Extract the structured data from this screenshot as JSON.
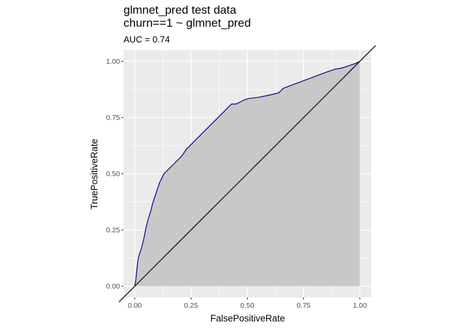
{
  "chart_data": {
    "type": "area",
    "title": "glmnet_pred test data",
    "title_line2": "churn==1 ~ glmnet_pred",
    "subtitle": "AUC = 0.74",
    "xlabel": "FalsePositiveRate",
    "ylabel": "TruePositiveRate",
    "xlim": [
      -0.05,
      1.05
    ],
    "ylim": [
      -0.05,
      1.05
    ],
    "x_ticks": [
      "0.00",
      "0.25",
      "0.50",
      "0.75",
      "1.00"
    ],
    "y_ticks": [
      "0.00",
      "0.25",
      "0.50",
      "0.75",
      "1.00"
    ],
    "grid": true,
    "legend": "none",
    "colors": {
      "panel": "#ebebeb",
      "grid": "#ffffff",
      "area_fill": "#c8c8c8",
      "roc_line": "#00008b",
      "diagonal": "#000000"
    },
    "roc_curve": {
      "x": [
        0,
        0.005,
        0.01,
        0.015,
        0.02,
        0.03,
        0.04,
        0.05,
        0.06,
        0.07,
        0.08,
        0.09,
        0.1,
        0.11,
        0.12,
        0.13,
        0.15,
        0.17,
        0.19,
        0.21,
        0.23,
        0.25,
        0.27,
        0.29,
        0.31,
        0.33,
        0.35,
        0.37,
        0.39,
        0.41,
        0.43,
        0.45,
        0.47,
        0.49,
        0.51,
        0.55,
        0.6,
        0.64,
        0.66,
        0.7,
        0.74,
        0.78,
        0.82,
        0.86,
        0.89,
        0.92,
        0.95,
        0.98,
        1.0
      ],
      "y": [
        0,
        0.03,
        0.08,
        0.12,
        0.14,
        0.17,
        0.21,
        0.26,
        0.3,
        0.33,
        0.37,
        0.4,
        0.43,
        0.46,
        0.48,
        0.5,
        0.52,
        0.54,
        0.56,
        0.58,
        0.61,
        0.63,
        0.65,
        0.67,
        0.69,
        0.71,
        0.73,
        0.75,
        0.77,
        0.79,
        0.81,
        0.81,
        0.82,
        0.83,
        0.835,
        0.84,
        0.85,
        0.86,
        0.88,
        0.895,
        0.91,
        0.925,
        0.94,
        0.955,
        0.965,
        0.97,
        0.98,
        0.99,
        1.0
      ]
    },
    "diagonal": {
      "x": [
        -0.05,
        1.05
      ],
      "y": [
        -0.05,
        1.05
      ]
    }
  }
}
